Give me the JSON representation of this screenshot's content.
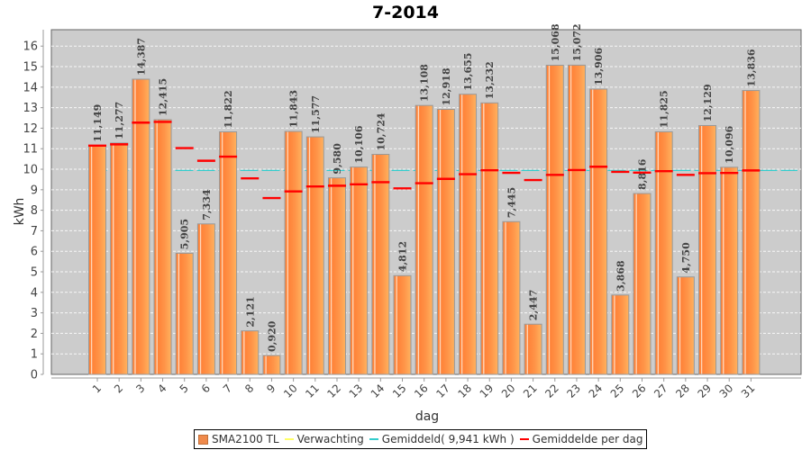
{
  "chart_data": {
    "type": "bar",
    "title": "7-2014",
    "xlabel": "dag",
    "ylabel": "kWh",
    "ylim": [
      0,
      16.8
    ],
    "yticks": [
      0,
      1,
      2,
      3,
      4,
      5,
      6,
      7,
      8,
      9,
      10,
      11,
      12,
      13,
      14,
      15,
      16
    ],
    "grid": true,
    "legend_position": "bottom",
    "categories": [
      "1",
      "2",
      "3",
      "4",
      "5",
      "6",
      "7",
      "8",
      "9",
      "10",
      "11",
      "12",
      "13",
      "14",
      "15",
      "16",
      "17",
      "18",
      "19",
      "20",
      "21",
      "22",
      "23",
      "24",
      "25",
      "26",
      "27",
      "28",
      "29",
      "30",
      "31"
    ],
    "series": [
      {
        "name": "SMA2100 TL",
        "kind": "bar",
        "color": "#ff8c42",
        "values": [
          11.149,
          11.277,
          14.387,
          12.415,
          5.905,
          7.334,
          11.822,
          2.121,
          0.92,
          11.843,
          11.577,
          9.58,
          10.106,
          10.724,
          4.812,
          13.108,
          12.918,
          13.655,
          13.232,
          7.445,
          2.447,
          15.068,
          15.072,
          13.906,
          3.868,
          8.816,
          11.825,
          4.75,
          12.129,
          10.096,
          13.836
        ],
        "labels": [
          "11,149",
          "11,277",
          "14,387",
          "12,415",
          "5,905",
          "7,334",
          "11,822",
          "2,121",
          "0,920",
          "11,843",
          "11,577",
          "9,580",
          "10,106",
          "10,724",
          "4,812",
          "13,108",
          "12,918",
          "13,655",
          "13,232",
          "7,445",
          "2,447",
          "15,068",
          "15,072",
          "13,906",
          "3,868",
          "8,816",
          "11,825",
          "4,750",
          "12,129",
          "10,096",
          "13,836"
        ]
      },
      {
        "name": "Verwachting",
        "kind": "line",
        "color": "#ffff66",
        "values": []
      },
      {
        "name": "Gemiddeld( 9,941 kWh )",
        "kind": "hline",
        "color": "#33cccc",
        "value": 9.941
      },
      {
        "name": "Gemiddelde per dag",
        "kind": "marker",
        "color": "#ff0000",
        "values": [
          11.149,
          11.213,
          12.271,
          12.307,
          11.027,
          10.412,
          10.613,
          9.552,
          8.593,
          8.918,
          9.16,
          9.195,
          9.265,
          9.369,
          9.065,
          9.318,
          9.53,
          9.759,
          9.947,
          9.822,
          9.471,
          9.725,
          9.958,
          10.122,
          9.872,
          9.833,
          9.907,
          9.723,
          9.806,
          9.816,
          9.941
        ]
      }
    ]
  },
  "legend": {
    "items": [
      {
        "label": "SMA2100 TL",
        "color": "#f08a4b",
        "kind": "box"
      },
      {
        "label": "Verwachting",
        "color": "#ffff66",
        "kind": "line"
      },
      {
        "label": "Gemiddeld( 9,941 kWh )",
        "color": "#33cccc",
        "kind": "line"
      },
      {
        "label": "Gemiddelde per dag",
        "color": "#ff0000",
        "kind": "line"
      }
    ]
  }
}
